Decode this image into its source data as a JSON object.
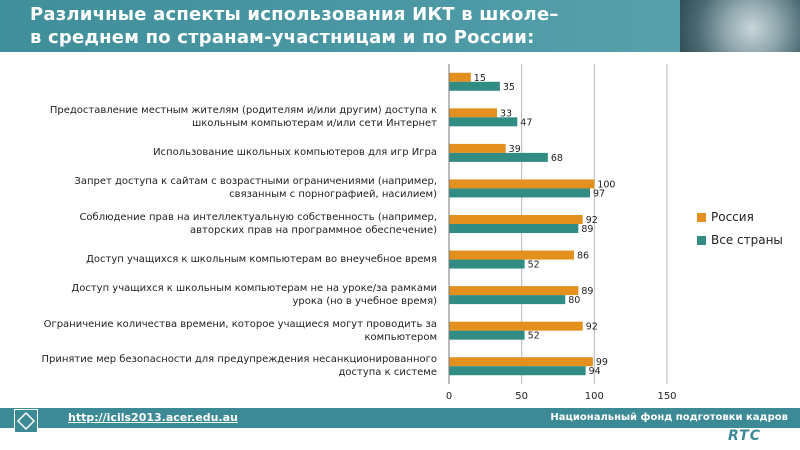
{
  "header": {
    "title_line1": "Различные аспекты использования ИКТ в школе–",
    "title_line2": "в среднем по странам-участницам и по России:"
  },
  "footer": {
    "url": "http://icils2013.acer.edu.au",
    "org": "Национальный фонд подготовки кадров",
    "logo": "RTC"
  },
  "colors": {
    "russia": "#e3901f",
    "all": "#318d83"
  },
  "chart_data": {
    "type": "bar",
    "orientation": "horizontal",
    "categories": [
      "",
      "Предоставление местным жителям (родителям и/или другим) доступа к школьным компьютерам и/или сети Интернет",
      "Использование школьных компьютеров для игр Игра",
      "Запрет доступа к сайтам с возрастными ограничениями (например, связанным с порнографией, насилием)",
      "Соблюдение прав на интеллектуальную собственность (например, авторских прав на программное обеспечение)",
      "Доступ учащихся к школьным компьютерам во внеучебное время",
      "Доступ учащихся к школьным компьютерам не на уроке/за рамками урока (но в учебное время)",
      "Ограничение количества времени, которое учащиеся могут проводить за компьютером",
      "Принятие мер безопасности для предупреждения несанкционированного доступа к системе"
    ],
    "series": [
      {
        "name": "Россия",
        "values": [
          15,
          33,
          39,
          100,
          92,
          86,
          89,
          92,
          99
        ]
      },
      {
        "name": "Все страны",
        "values": [
          35,
          47,
          68,
          97,
          89,
          52,
          80,
          52,
          94
        ]
      }
    ],
    "xlim": [
      0,
      150
    ],
    "xticks": [
      "0",
      "50",
      "100",
      "150"
    ],
    "grid": true,
    "legend_position": "right"
  }
}
